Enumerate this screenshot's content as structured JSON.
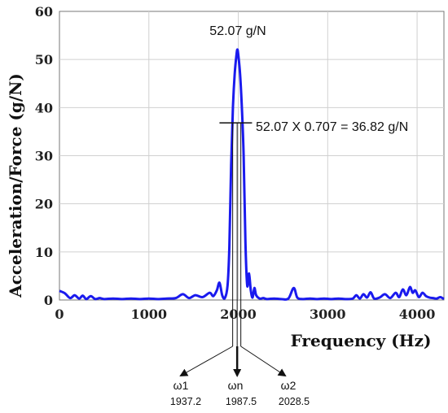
{
  "chart_data": {
    "type": "line",
    "title": "",
    "xlabel": "Frequency  (Hz)",
    "ylabel": "Acceleration/Force  (g/N)",
    "xlim": [
      0,
      4300
    ],
    "ylim": [
      0,
      60
    ],
    "x_ticks": [
      0,
      1000,
      2000,
      3000,
      4000
    ],
    "y_ticks": [
      0,
      10,
      20,
      30,
      40,
      50,
      60
    ],
    "grid": true,
    "series": [
      {
        "color": "#1a1aee",
        "x": [
          0,
          60,
          120,
          170,
          220,
          260,
          300,
          350,
          400,
          450,
          500,
          600,
          700,
          800,
          900,
          1000,
          1100,
          1200,
          1300,
          1380,
          1450,
          1520,
          1600,
          1680,
          1720,
          1760,
          1790,
          1820,
          1850,
          1880,
          1900,
          1920,
          1940,
          1960,
          1980,
          1990,
          2000,
          2020,
          2040,
          2060,
          2080,
          2100,
          2120,
          2140,
          2160,
          2180,
          2200,
          2240,
          2280,
          2320,
          2400,
          2480,
          2560,
          2620,
          2660,
          2720,
          2800,
          2880,
          2960,
          3040,
          3120,
          3200,
          3280,
          3320,
          3360,
          3400,
          3440,
          3480,
          3520,
          3580,
          3640,
          3700,
          3760,
          3800,
          3840,
          3880,
          3920,
          3950,
          3980,
          4020,
          4060,
          4100,
          4140,
          4180,
          4220,
          4260,
          4300
        ],
        "y": [
          1.9,
          1.4,
          0.4,
          1.0,
          0.3,
          0.9,
          0.2,
          0.8,
          0.2,
          0.4,
          0.2,
          0.3,
          0.2,
          0.3,
          0.2,
          0.3,
          0.2,
          0.3,
          0.4,
          1.2,
          0.4,
          1.0,
          0.6,
          1.5,
          0.8,
          2.0,
          3.6,
          1.0,
          0.4,
          3.0,
          11.0,
          28.0,
          40.0,
          47.0,
          51.0,
          52.07,
          51.0,
          47.0,
          40.0,
          30.0,
          12.0,
          3.0,
          5.5,
          2.0,
          0.5,
          2.5,
          1.0,
          0.3,
          0.4,
          0.2,
          0.3,
          0.2,
          0.3,
          2.5,
          0.5,
          0.2,
          0.3,
          0.2,
          0.3,
          0.2,
          0.3,
          0.2,
          0.3,
          1.0,
          0.3,
          1.2,
          0.5,
          1.6,
          0.3,
          0.5,
          1.2,
          0.4,
          1.5,
          0.6,
          2.2,
          1.0,
          2.7,
          1.5,
          2.0,
          0.6,
          1.5,
          0.8,
          0.5,
          0.4,
          0.3,
          0.6,
          0.2
        ]
      }
    ],
    "annotations": {
      "peak_label": "52.07 g/N",
      "half_power_label": "52.07 X 0.707 = 36.82 g/N",
      "half_power_level": 36.82,
      "omega1": {
        "label": "ω1",
        "value": "1937.2"
      },
      "omegan": {
        "label": "ωn",
        "value": "1987.5"
      },
      "omega2": {
        "label": "ω2",
        "value": "2028.5"
      }
    }
  }
}
